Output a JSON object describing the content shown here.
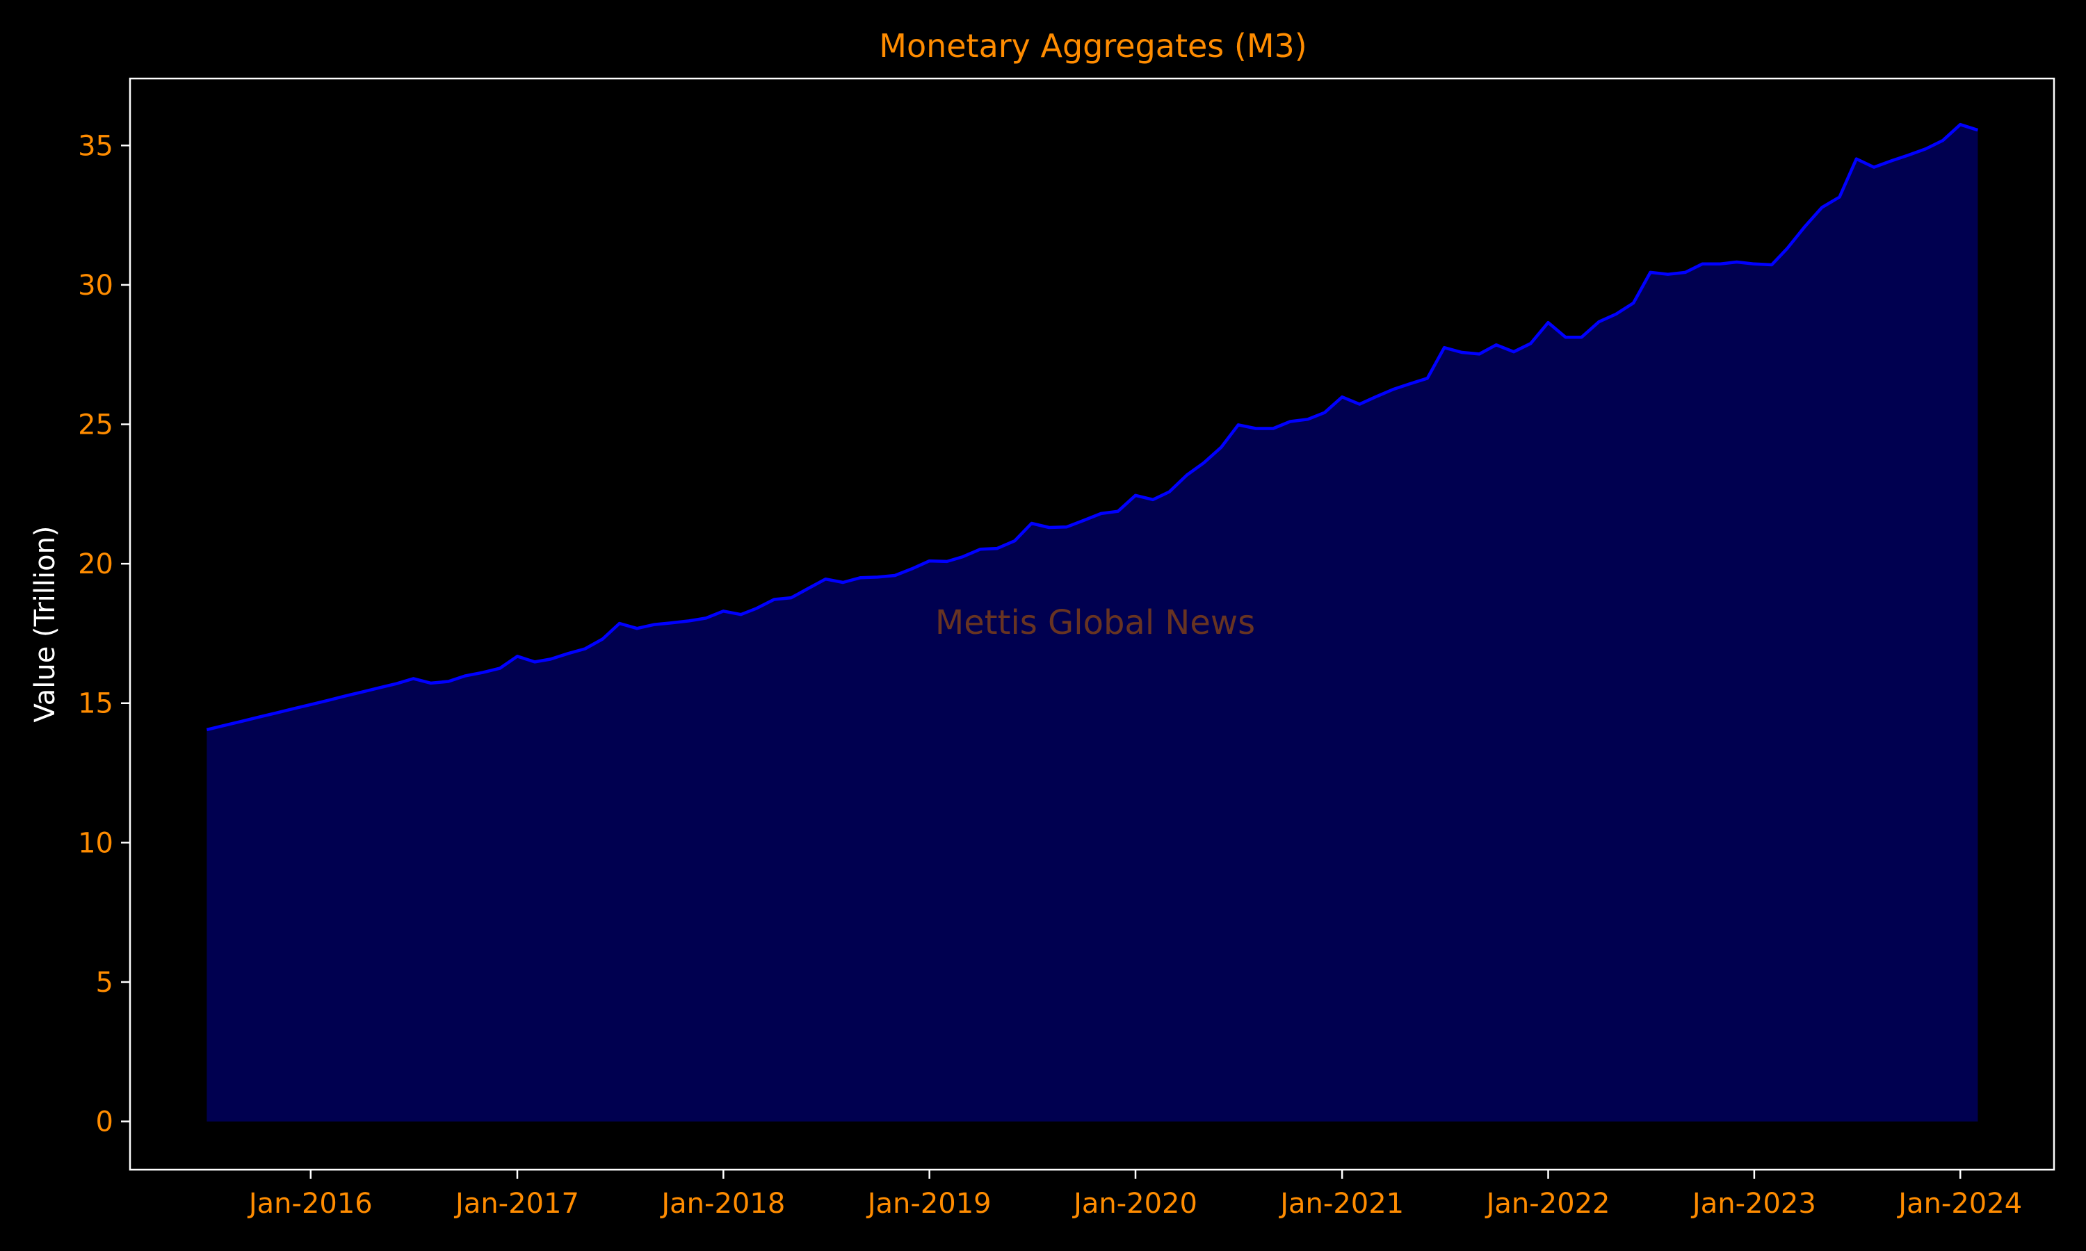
{
  "chart_data": {
    "type": "area",
    "title": "Monetary Aggregates (M3)",
    "xlabel": "",
    "ylabel": "Value (Trillion)",
    "watermark": "Mettis Global News",
    "x_start": "2015-07",
    "x_end": "2024-02",
    "xlim": [
      "2015-02-15",
      "2024-06-15"
    ],
    "ylim": [
      -1.73,
      37.4
    ],
    "x_ticks": [
      "2016-01",
      "2017-01",
      "2018-01",
      "2019-01",
      "2020-01",
      "2021-01",
      "2022-01",
      "2023-01",
      "2024-01"
    ],
    "x_tick_labels": [
      "Jan-2016",
      "Jan-2017",
      "Jan-2018",
      "Jan-2019",
      "Jan-2020",
      "Jan-2021",
      "Jan-2022",
      "Jan-2023",
      "Jan-2024"
    ],
    "y_ticks": [
      0,
      5,
      10,
      15,
      20,
      25,
      30,
      35
    ],
    "grid": false,
    "values": [
      14.05,
      14.2,
      14.35,
      14.5,
      14.65,
      14.8,
      14.95,
      15.1,
      15.25,
      15.4,
      15.55,
      15.7,
      15.88,
      15.72,
      15.78,
      15.98,
      16.1,
      16.25,
      16.68,
      16.48,
      16.58,
      16.78,
      16.95,
      17.3,
      17.86,
      17.68,
      17.82,
      17.88,
      17.95,
      18.05,
      18.3,
      18.18,
      18.4,
      18.72,
      18.78,
      19.12,
      19.45,
      19.33,
      19.5,
      19.52,
      19.58,
      19.82,
      20.1,
      20.08,
      20.25,
      20.52,
      20.55,
      20.82,
      21.45,
      21.3,
      21.32,
      21.55,
      21.8,
      21.88,
      22.45,
      22.3,
      22.58,
      23.18,
      23.62,
      24.18,
      24.98,
      24.85,
      24.85,
      25.1,
      25.18,
      25.42,
      25.98,
      25.72,
      25.98,
      26.25,
      26.45,
      26.65,
      27.75,
      27.58,
      27.52,
      27.85,
      27.6,
      27.9,
      28.65,
      28.12,
      28.12,
      28.68,
      28.95,
      29.35,
      30.45,
      30.38,
      30.45,
      30.75,
      30.75,
      30.82,
      30.75,
      30.72,
      31.32,
      32.1,
      32.78,
      33.15,
      34.52,
      34.22,
      34.45,
      34.65,
      34.88,
      35.18,
      35.75,
      35.55
    ],
    "colors": {
      "line": "#0000ff",
      "fill": "#000050",
      "text_accent": "#ff8c00",
      "axis_label": "#ffffff",
      "spine": "#ffffff",
      "watermark": "#8b4513",
      "background": "#000000"
    }
  }
}
